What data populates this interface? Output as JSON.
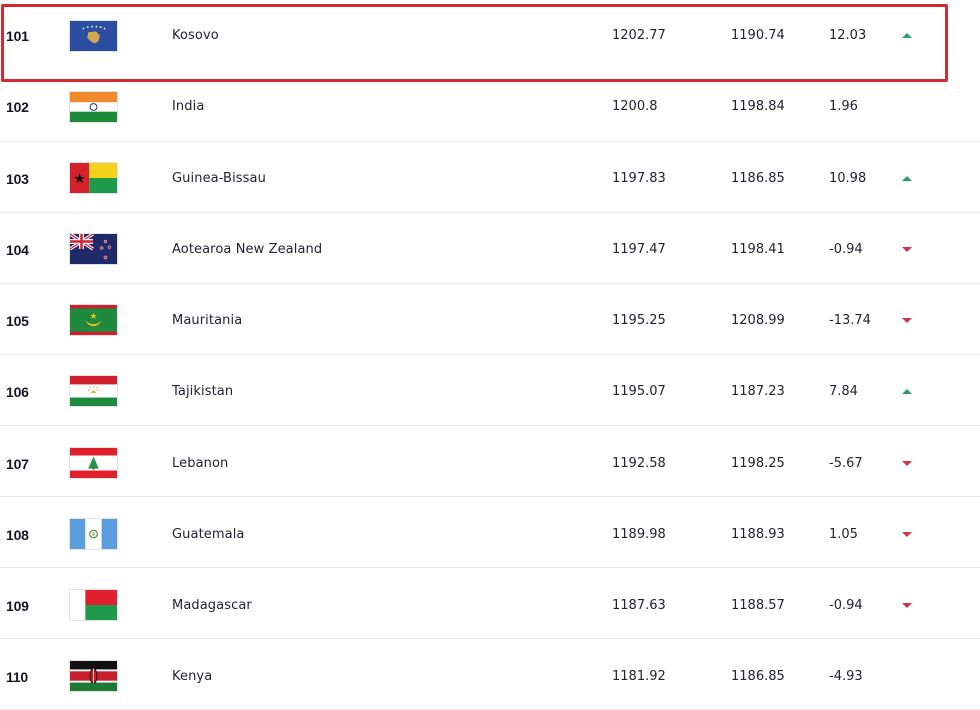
{
  "rows": [
    {
      "rank": "101",
      "country": "Kosovo",
      "total_points": "1202.77",
      "previous_points": "1190.74",
      "difference": "12.03",
      "trend": "up",
      "flag": "kosovo-flag"
    },
    {
      "rank": "102",
      "country": "India",
      "total_points": "1200.8",
      "previous_points": "1198.84",
      "difference": "1.96",
      "trend": "none",
      "flag": "india-flag"
    },
    {
      "rank": "103",
      "country": "Guinea-Bissau",
      "total_points": "1197.83",
      "previous_points": "1186.85",
      "difference": "10.98",
      "trend": "up",
      "flag": "guinea-bissau-flag"
    },
    {
      "rank": "104",
      "country": "Aotearoa New Zealand",
      "total_points": "1197.47",
      "previous_points": "1198.41",
      "difference": "-0.94",
      "trend": "down",
      "flag": "new-zealand-flag"
    },
    {
      "rank": "105",
      "country": "Mauritania",
      "total_points": "1195.25",
      "previous_points": "1208.99",
      "difference": "-13.74",
      "trend": "down",
      "flag": "mauritania-flag"
    },
    {
      "rank": "106",
      "country": "Tajikistan",
      "total_points": "1195.07",
      "previous_points": "1187.23",
      "difference": "7.84",
      "trend": "up",
      "flag": "tajikistan-flag"
    },
    {
      "rank": "107",
      "country": "Lebanon",
      "total_points": "1192.58",
      "previous_points": "1198.25",
      "difference": "-5.67",
      "trend": "down",
      "flag": "lebanon-flag"
    },
    {
      "rank": "108",
      "country": "Guatemala",
      "total_points": "1189.98",
      "previous_points": "1188.93",
      "difference": "1.05",
      "trend": "down",
      "flag": "guatemala-flag"
    },
    {
      "rank": "109",
      "country": "Madagascar",
      "total_points": "1187.63",
      "previous_points": "1188.57",
      "difference": "-0.94",
      "trend": "down",
      "flag": "madagascar-flag"
    },
    {
      "rank": "110",
      "country": "Kenya",
      "total_points": "1181.92",
      "previous_points": "1186.85",
      "difference": "-4.93",
      "trend": "none",
      "flag": "kenya-flag"
    }
  ],
  "highlighted_row": "101",
  "colors": {
    "highlight": "#d42a33",
    "trend_up": "#2ea06a",
    "trend_down": "#d2334a"
  }
}
